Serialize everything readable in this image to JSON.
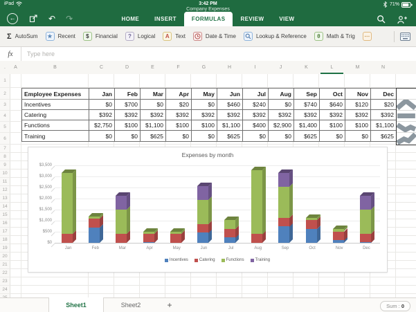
{
  "status_bar": {
    "device": "iPad",
    "time": "3:42 PM",
    "doc_title": "Company Expenses",
    "battery_pct": "71%"
  },
  "header": {
    "tabs": [
      {
        "label": "HOME",
        "active": false
      },
      {
        "label": "INSERT",
        "active": false
      },
      {
        "label": "FORMULAS",
        "active": true
      },
      {
        "label": "REVIEW",
        "active": false
      },
      {
        "label": "VIEW",
        "active": false
      }
    ]
  },
  "ribbon": {
    "buttons": [
      {
        "label": "AutoSum",
        "icon": "sigma-icon",
        "glyph": "Σ",
        "box": false,
        "border": "",
        "bg": "",
        "fg": "#333333"
      },
      {
        "label": "Recent",
        "icon": "star-icon",
        "glyph": "★",
        "box": true,
        "border": "#8db3dc",
        "bg": "#eef4fb",
        "fg": "#5b87b7"
      },
      {
        "label": "Financial",
        "icon": "money-icon",
        "glyph": "$",
        "box": true,
        "border": "#9dc285",
        "bg": "#f0f7ec",
        "fg": "#3c3c3c"
      },
      {
        "label": "Logical",
        "icon": "question-icon",
        "glyph": "?",
        "box": true,
        "border": "#b5aec6",
        "bg": "#f4f2f8",
        "fg": "#6b6292"
      },
      {
        "label": "Text",
        "icon": "letter-a-icon",
        "glyph": "A",
        "box": true,
        "border": "#d9c47e",
        "bg": "#fbf6e4",
        "fg": "#c05046"
      },
      {
        "label": "Date & Time",
        "icon": "clock-icon",
        "glyph": "◷",
        "box": true,
        "border": "#cc8a88",
        "bg": "#faeeed",
        "fg": "#b34f4b"
      },
      {
        "label": "Lookup & Reference",
        "icon": "magnifier-icon",
        "glyph": "",
        "box": true,
        "border": "#8db3dc",
        "bg": "#eef4fb",
        "fg": "#4a76a8"
      },
      {
        "label": "Math & Trig",
        "icon": "theta-icon",
        "glyph": "θ",
        "box": true,
        "border": "#9dc285",
        "bg": "#f0f7ec",
        "fg": "#4e7d3a"
      },
      {
        "label": "",
        "icon": "more-functions-icon",
        "glyph": "⋯",
        "box": true,
        "border": "#e0b980",
        "bg": "#fbf3e6",
        "fg": "#c08a3e"
      }
    ]
  },
  "formula_bar": {
    "fx_label": "fx",
    "placeholder": "Type here"
  },
  "grid": {
    "corner_label": ".",
    "columns": [
      "A",
      "B",
      "C",
      "D",
      "E",
      "F",
      "G",
      "H",
      "I",
      "J",
      "K",
      "L",
      "M",
      "N"
    ],
    "selected_column": "L",
    "row_numbers": [
      1,
      2,
      3,
      4,
      5,
      6,
      7,
      8,
      9,
      10,
      11,
      12,
      13,
      14,
      15,
      16,
      17,
      18,
      19,
      20,
      21,
      22,
      23,
      24,
      25
    ]
  },
  "table": {
    "headers": [
      "Employee Expenses",
      "Jan",
      "Feb",
      "Mar",
      "Apr",
      "May",
      "Jun",
      "Jul",
      "Aug",
      "Sep",
      "Oct",
      "Nov",
      "Dec"
    ],
    "rows": [
      {
        "label": "Incentives",
        "values": [
          "$0",
          "$700",
          "$0",
          "$20",
          "$0",
          "$460",
          "$240",
          "$0",
          "$740",
          "$640",
          "$120",
          "$20"
        ]
      },
      {
        "label": "Catering",
        "values": [
          "$392",
          "$392",
          "$392",
          "$392",
          "$392",
          "$392",
          "$392",
          "$392",
          "$392",
          "$392",
          "$392",
          "$392"
        ]
      },
      {
        "label": "Functions",
        "values": [
          "$2,750",
          "$100",
          "$1,100",
          "$100",
          "$100",
          "$1,100",
          "$400",
          "$2,900",
          "$1,400",
          "$100",
          "$100",
          "$1,100"
        ]
      },
      {
        "label": "Training",
        "values": [
          "$0",
          "$0",
          "$625",
          "$0",
          "$0",
          "$625",
          "$0",
          "$0",
          "$625",
          "$0",
          "$0",
          "$625"
        ]
      }
    ]
  },
  "sparklines": [
    {
      "row": "Incentives",
      "points": [
        [
          4,
          82
        ],
        [
          48,
          12
        ],
        [
          96,
          82
        ]
      ]
    },
    {
      "row": "Catering",
      "points": [
        [
          4,
          50
        ],
        [
          96,
          50
        ]
      ]
    },
    {
      "row": "Functions",
      "points": [
        [
          4,
          30
        ],
        [
          45,
          78
        ],
        [
          72,
          52
        ],
        [
          96,
          72
        ]
      ]
    },
    {
      "row": "Training",
      "points": [
        [
          4,
          85
        ],
        [
          38,
          52
        ],
        [
          62,
          68
        ],
        [
          96,
          12
        ]
      ]
    }
  ],
  "chart_data": {
    "type": "bar",
    "stacked": true,
    "title": "Expenses by month",
    "categories": [
      "Jan",
      "Feb",
      "Mar",
      "Apr",
      "May",
      "Jun",
      "Jul",
      "Aug",
      "Sep",
      "Oct",
      "Nov",
      "Dec"
    ],
    "series": [
      {
        "name": "Incentives",
        "color": "#4f81bd",
        "values": [
          0,
          700,
          0,
          20,
          0,
          460,
          240,
          0,
          740,
          640,
          120,
          20
        ]
      },
      {
        "name": "Catering",
        "color": "#c0504d",
        "values": [
          392,
          392,
          392,
          392,
          392,
          392,
          392,
          392,
          392,
          392,
          392,
          392
        ]
      },
      {
        "name": "Functions",
        "color": "#9bbb59",
        "values": [
          2750,
          100,
          1100,
          100,
          100,
          1100,
          400,
          2900,
          1400,
          100,
          100,
          1100
        ]
      },
      {
        "name": "Training",
        "color": "#8064a2",
        "values": [
          0,
          0,
          625,
          0,
          0,
          625,
          0,
          0,
          625,
          0,
          0,
          625
        ]
      }
    ],
    "ylim": [
      0,
      3500
    ],
    "ytick_step": 500,
    "ytick_labels": [
      "$0",
      "$500",
      "$1,000",
      "$1,500",
      "$2,000",
      "$2,500",
      "$3,000",
      "$3,500"
    ],
    "grid": true,
    "legend_position": "bottom"
  },
  "sheet_bar": {
    "sheets": [
      {
        "name": "Sheet1",
        "active": true
      },
      {
        "name": "Sheet2",
        "active": false
      }
    ],
    "add_sheet_label": "+",
    "sum_badge": {
      "label": "Sum :",
      "value": "0"
    }
  }
}
